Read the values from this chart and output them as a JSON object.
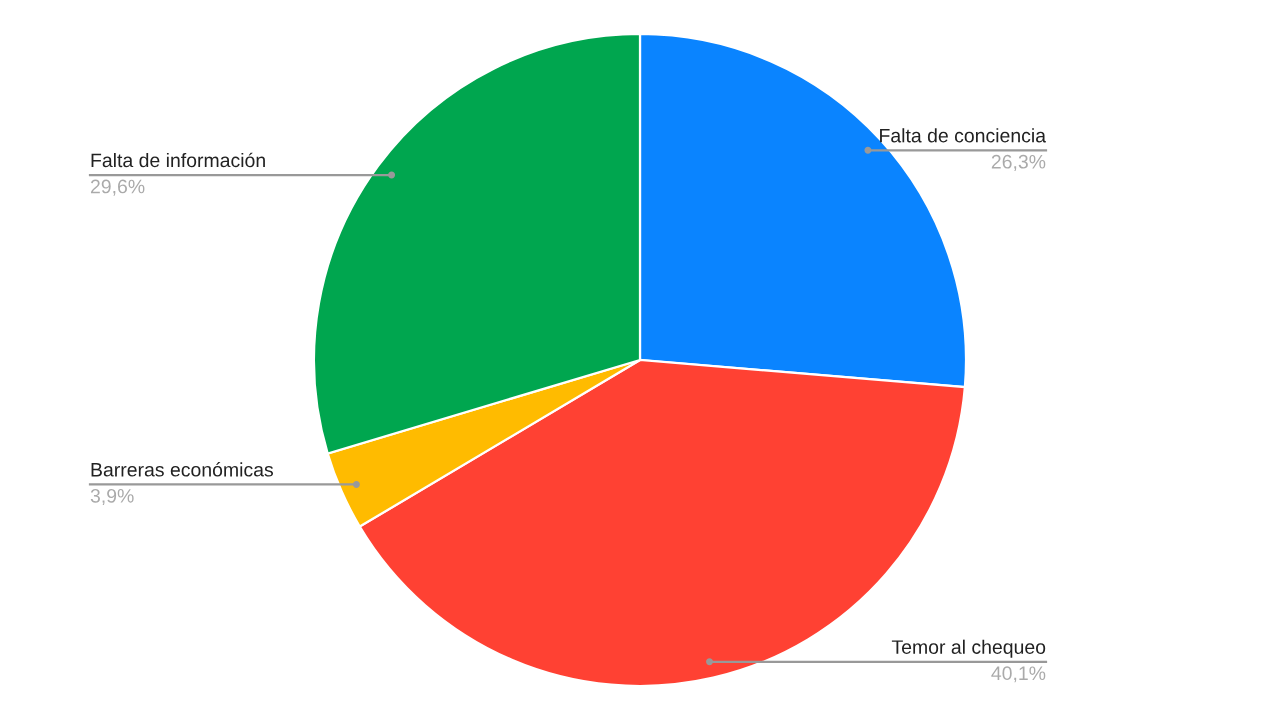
{
  "chart_data": {
    "type": "pie",
    "categories": [
      "Falta de conciencia",
      "Temor al chequeo",
      "Barreras económicas",
      "Falta de información"
    ],
    "values": [
      26.3,
      40.1,
      3.9,
      29.6
    ],
    "colors": [
      "#0a84ff",
      "#ff4133",
      "#ffbb00",
      "#00a64f"
    ],
    "value_labels": [
      "26,3%",
      "40,1%",
      "3,9%",
      "29,6%"
    ],
    "legend": false
  }
}
